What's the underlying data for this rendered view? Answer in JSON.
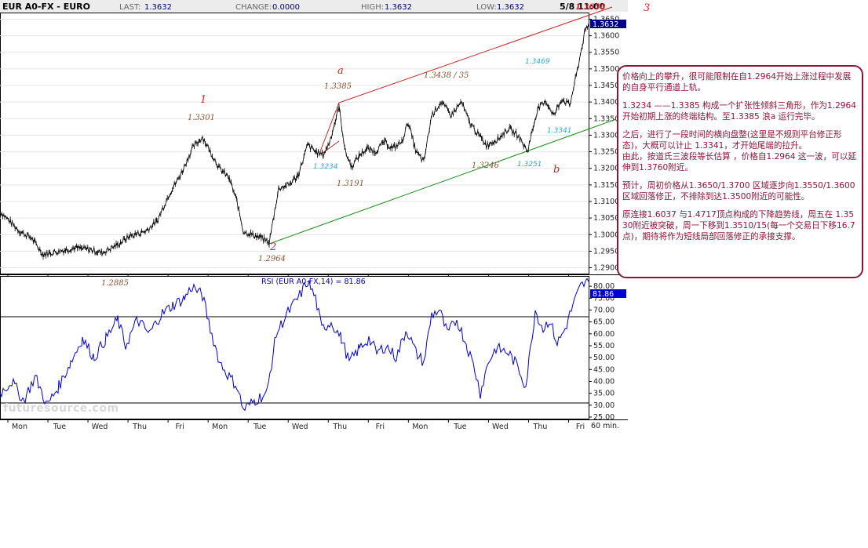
{
  "header": {
    "symbol": "EUR A0-FX - EURO",
    "last_label": "LAST:",
    "last_value": "1.3632",
    "change_label": "CHANGE:",
    "change_value": "0.0000",
    "high_label": "HIGH:",
    "high_value": "1.3632",
    "low_label": "LOW:",
    "low_value": "1.3632",
    "datetime": "5/8 11:00"
  },
  "chart_data": [
    {
      "type": "candlestick",
      "title": "EUR A0-FX - EURO",
      "interval": "60 min.",
      "x_tick_labels": [
        "Mon",
        "Tue",
        "Wed",
        "Thu",
        "Fri",
        "Mon",
        "Tue",
        "Wed",
        "Thu",
        "Fri",
        "Mon",
        "Tue",
        "Wed",
        "Thu",
        "Fri"
      ],
      "y_tick_labels": [
        "1.2900",
        "1.2950",
        "1.3000",
        "1.3050",
        "1.3100",
        "1.3150",
        "1.3200",
        "1.3250",
        "1.3300",
        "1.3350",
        "1.3400",
        "1.3450",
        "1.3500",
        "1.3550",
        "1.3600",
        "1.3650"
      ],
      "ylim": [
        1.288,
        1.367
      ],
      "last_price": "1.3632",
      "path_points": [
        [
          0,
          1.307
        ],
        [
          25,
          1.301
        ],
        [
          40,
          1.299
        ],
        [
          55,
          1.294
        ],
        [
          75,
          1.295
        ],
        [
          95,
          1.296
        ],
        [
          115,
          1.2955
        ],
        [
          130,
          1.2945
        ],
        [
          150,
          1.297
        ],
        [
          165,
          1.2995
        ],
        [
          185,
          1.301
        ],
        [
          200,
          1.304
        ],
        [
          215,
          1.312
        ],
        [
          230,
          1.318
        ],
        [
          245,
          1.326
        ],
        [
          258,
          1.3295
        ],
        [
          268,
          1.325
        ],
        [
          280,
          1.32
        ],
        [
          292,
          1.317
        ],
        [
          302,
          1.31
        ],
        [
          310,
          1.301
        ],
        [
          322,
          1.3
        ],
        [
          333,
          1.299
        ],
        [
          343,
          1.2975
        ],
        [
          355,
          1.314
        ],
        [
          368,
          1.315
        ],
        [
          380,
          1.318
        ],
        [
          392,
          1.327
        ],
        [
          402,
          1.325
        ],
        [
          412,
          1.324
        ],
        [
          420,
          1.328
        ],
        [
          432,
          1.3385
        ],
        [
          440,
          1.325
        ],
        [
          448,
          1.3205
        ],
        [
          458,
          1.324
        ],
        [
          468,
          1.326
        ],
        [
          478,
          1.325
        ],
        [
          490,
          1.328
        ],
        [
          500,
          1.326
        ],
        [
          512,
          1.328
        ],
        [
          520,
          1.334
        ],
        [
          530,
          1.325
        ],
        [
          540,
          1.322
        ],
        [
          550,
          1.336
        ],
        [
          562,
          1.34
        ],
        [
          575,
          1.336
        ],
        [
          588,
          1.34
        ],
        [
          598,
          1.334
        ],
        [
          610,
          1.33
        ],
        [
          620,
          1.327
        ],
        [
          635,
          1.329
        ],
        [
          648,
          1.332
        ],
        [
          660,
          1.33
        ],
        [
          672,
          1.3251
        ],
        [
          685,
          1.338
        ],
        [
          696,
          1.34
        ],
        [
          706,
          1.336
        ],
        [
          716,
          1.341
        ],
        [
          726,
          1.339
        ],
        [
          736,
          1.35
        ],
        [
          745,
          1.361
        ],
        [
          750,
          1.3632
        ]
      ],
      "annotations": [
        {
          "text": "1",
          "price": "1.3301"
        },
        {
          "text": "2",
          "price": "1.2964"
        },
        {
          "text": "3",
          "price": "1.3650"
        },
        {
          "text": "a",
          "price": "1.3385"
        },
        {
          "text": "b",
          "price": "1.3251"
        },
        {
          "text": "1.3438 / 35"
        },
        {
          "text": "1.3191"
        },
        {
          "text": "1.3246"
        },
        {
          "text": "1.3234"
        },
        {
          "text": "1.3469"
        },
        {
          "text": "1.3341"
        },
        {
          "text": "1.2885"
        }
      ]
    },
    {
      "type": "line",
      "title": "RSI (EUR A0-FX,14) = 81.86",
      "series": [
        {
          "name": "RSI (EUR A0-FX,14)",
          "last": 81.86
        }
      ],
      "y_tick_labels": [
        "25.00",
        "30.00",
        "35.00",
        "40.00",
        "45.00",
        "50.00",
        "55.00",
        "60.00",
        "65.00",
        "70.00",
        "75.00",
        "80.00"
      ],
      "ylim": [
        24,
        84
      ],
      "reference_lines": [
        70,
        30
      ],
      "path_points": [
        [
          0,
          35
        ],
        [
          15,
          40
        ],
        [
          30,
          32
        ],
        [
          45,
          42
        ],
        [
          60,
          30
        ],
        [
          75,
          38
        ],
        [
          90,
          48
        ],
        [
          105,
          58
        ],
        [
          120,
          50
        ],
        [
          135,
          58
        ],
        [
          150,
          66
        ],
        [
          160,
          55
        ],
        [
          175,
          66
        ],
        [
          190,
          60
        ],
        [
          205,
          68
        ],
        [
          220,
          72
        ],
        [
          235,
          75
        ],
        [
          245,
          80
        ],
        [
          258,
          76
        ],
        [
          268,
          62
        ],
        [
          280,
          48
        ],
        [
          292,
          42
        ],
        [
          302,
          38
        ],
        [
          310,
          28
        ],
        [
          325,
          32
        ],
        [
          340,
          35
        ],
        [
          352,
          60
        ],
        [
          365,
          68
        ],
        [
          380,
          75
        ],
        [
          392,
          82
        ],
        [
          402,
          75
        ],
        [
          410,
          62
        ],
        [
          422,
          65
        ],
        [
          435,
          58
        ],
        [
          445,
          48
        ],
        [
          458,
          54
        ],
        [
          470,
          58
        ],
        [
          480,
          52
        ],
        [
          492,
          55
        ],
        [
          505,
          50
        ],
        [
          518,
          62
        ],
        [
          530,
          52
        ],
        [
          540,
          48
        ],
        [
          550,
          68
        ],
        [
          560,
          70
        ],
        [
          570,
          60
        ],
        [
          582,
          66
        ],
        [
          595,
          55
        ],
        [
          605,
          45
        ],
        [
          612,
          35
        ],
        [
          622,
          48
        ],
        [
          632,
          54
        ],
        [
          648,
          52
        ],
        [
          660,
          46
        ],
        [
          670,
          38
        ],
        [
          682,
          70
        ],
        [
          692,
          62
        ],
        [
          700,
          66
        ],
        [
          710,
          56
        ],
        [
          720,
          62
        ],
        [
          730,
          72
        ],
        [
          740,
          80
        ],
        [
          750,
          82
        ]
      ]
    }
  ],
  "notes": {
    "p1": "价格向上的攀升，很可能限制在自1.2964开始上涨过程中发展的自身平行通道上轨。",
    "p2": "1.3234 ——1.3385 构成一个扩张性倾斜三角形，作为1.2964开始初期上涨的终端结构。至1.3385 浪a 运行完毕。",
    "p3a": "之后，进行了一段时间的横向盘整(这里是不规则平台修正形态)，大概可以计止 1.3341，才开始尾端的拉升。",
    "p3b": "由此，按道氏三波段等长估算 ，价格自1.2964 这一波，可以延伸到1.3760附近。",
    "p4": "预计，周初价格从1.3650/1.3700 区域逐步向1.3550/1.3600区域回落修正，不排除到达1.3500附近的可能性。",
    "p5": "原连接1.6037 与1.4717顶点构成的下降趋势线，周五在 1.3530附近被突破，周一下移到1.3510/15(每一个交易日下移16.7点)，期待将作为短线局部回落修正的承接支撑。"
  },
  "watermark": "futuresource.com",
  "colors": {
    "price_line": "#000000",
    "rsi_line": "#0000cc",
    "channel_upper": "#cc2222",
    "channel_lower": "#1a8a1a",
    "note_border": "#8a1538"
  }
}
